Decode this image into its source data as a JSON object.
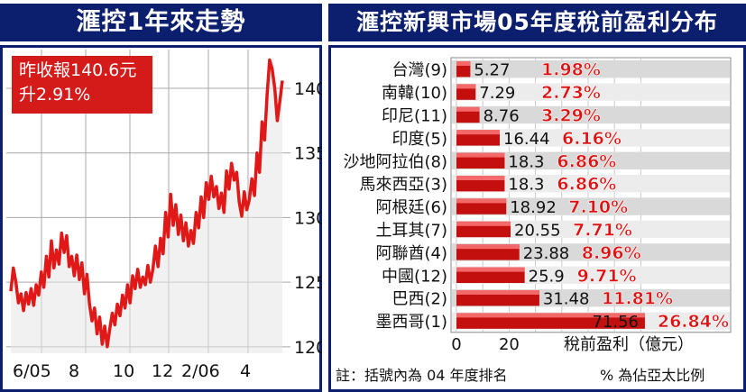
{
  "left_chart": {
    "title": "滙控1年來走勢",
    "price_line1": "昨收報140.6元",
    "price_line2": "升2.91%",
    "chart_data": {
      "type": "line",
      "title": "滙控1年來走勢",
      "x_tick_labels": [
        "6/05",
        "8",
        "10",
        "12",
        "2/06",
        "4"
      ],
      "y_ticks": [
        120,
        125,
        130,
        135,
        140
      ],
      "ylim": [
        119.5,
        143
      ],
      "grid": true,
      "line_color": "#e01818",
      "series": [
        {
          "values": [
            124.3,
            126.1,
            125.0,
            123.4,
            124.1,
            122.8,
            124.2,
            123.3,
            124.5,
            123.2,
            124.8,
            124.0,
            125.8,
            124.6,
            127.0,
            125.4,
            128.2,
            126.1,
            127.5,
            126.4,
            128.8,
            127.3,
            128.6,
            126.2,
            127.0,
            125.5,
            127.1,
            125.2,
            126.5,
            124.1,
            125.6,
            123.3,
            122.0,
            123.0,
            121.0,
            122.3,
            120.2,
            121.6,
            120.0,
            121.4,
            122.6,
            121.7,
            123.3,
            122.4,
            124.0,
            123.0,
            124.8,
            123.4,
            125.5,
            124.5,
            126.0,
            124.6,
            125.4,
            124.8,
            126.3,
            125.0,
            126.0,
            127.8,
            126.2,
            128.4,
            127.2,
            130.4,
            128.5,
            131.8,
            129.4,
            131.0,
            128.7,
            130.2,
            128.2,
            129.6,
            127.8,
            129.0,
            128.0,
            130.4,
            129.2,
            131.6,
            130.0,
            132.7,
            131.4,
            133.2,
            131.6,
            132.4,
            130.7,
            131.9,
            130.4,
            133.6,
            132.2,
            134.2,
            132.9,
            133.5,
            131.2,
            130.1,
            132.0,
            130.6,
            131.4,
            133.0,
            131.7,
            135.0,
            133.5,
            137.4,
            136.0,
            139.5,
            142.2,
            141.5,
            140.0,
            137.5,
            139.0,
            140.6
          ]
        }
      ]
    }
  },
  "right_chart": {
    "title": "滙控新興市場05年度稅前盈利分布",
    "xlabel": "稅前盈利（億元）",
    "x_tick_labels": [
      "0",
      "20"
    ],
    "footnote_left": "註：括號內為 04 年度排名",
    "footnote_right": "% 為佔亞太比例",
    "chart_data": {
      "type": "bar",
      "orientation": "horizontal",
      "title": "滙控新興市場05年度稅前盈利分布",
      "xlabel": "稅前盈利（億元）",
      "xlim": [
        0,
        75
      ],
      "categories": [
        "台灣(9)",
        "南韓(10)",
        "印尼(11)",
        "印度(5)",
        "沙地阿拉伯(8)",
        "馬來西亞(3)",
        "阿根廷(6)",
        "土耳其(7)",
        "阿聯酋(4)",
        "中國(12)",
        "巴西(2)",
        "墨西哥(1)"
      ],
      "values": [
        5.27,
        7.29,
        8.76,
        16.44,
        18.3,
        18.3,
        18.92,
        20.55,
        23.88,
        25.9,
        31.48,
        71.56
      ],
      "value_labels": [
        "5.27",
        "7.29",
        "8.76",
        "16.44",
        "18.3",
        "18.3",
        "18.92",
        "20.55",
        "23.88",
        "25.9",
        "31.48",
        "71.56"
      ],
      "percent_labels": [
        "1.98%",
        "2.73%",
        "3.29%",
        "6.16%",
        "6.86%",
        "6.86%",
        "7.10%",
        "7.71%",
        "8.96%",
        "9.71%",
        "11.81%",
        "26.84%"
      ],
      "bar_color": "#c40f0f"
    }
  }
}
